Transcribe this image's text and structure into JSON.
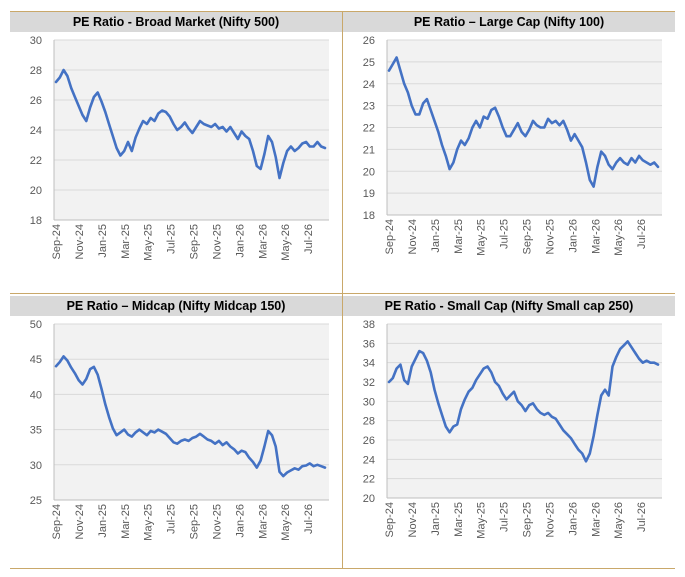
{
  "chart_data": [
    {
      "type": "line",
      "title": "PE Ratio - Broad Market (Nifty 500)",
      "xlabel": "",
      "ylabel": "",
      "ylim": [
        18,
        30
      ],
      "yticks": [
        18,
        20,
        22,
        24,
        26,
        28,
        30
      ],
      "xticks": [
        "Sep-24",
        "Nov-24",
        "Jan-25",
        "Mar-25",
        "May-25",
        "Jul-25",
        "Sep-25",
        "Nov-25",
        "Jan-26",
        "Mar-26",
        "May-26",
        "Jul-26"
      ],
      "grid": true,
      "color": "#4472c4",
      "series": [
        {
          "values": [
            27.2,
            27.5,
            28.0,
            27.6,
            26.8,
            26.2,
            25.6,
            25.0,
            24.6,
            25.5,
            26.2,
            26.5,
            25.9,
            25.2,
            24.4,
            23.6,
            22.8,
            22.3,
            22.6,
            23.2,
            22.6,
            23.5,
            24.1,
            24.6,
            24.4,
            24.8,
            24.6,
            25.1,
            25.3,
            25.2,
            24.9,
            24.4,
            24.0,
            24.2,
            24.5,
            24.1,
            23.8,
            24.2,
            24.6,
            24.4,
            24.3,
            24.2,
            24.4,
            24.1,
            24.2,
            23.9,
            24.2,
            23.8,
            23.4,
            23.9,
            23.6,
            23.4,
            22.6,
            21.6,
            21.4,
            22.4,
            23.6,
            23.2,
            22.2,
            20.8,
            21.8,
            22.6,
            22.9,
            22.6,
            22.8,
            23.1,
            23.2,
            22.9,
            22.9,
            23.2,
            22.9,
            22.8
          ]
        }
      ]
    },
    {
      "type": "line",
      "title": "PE Ratio – Large Cap (Nifty 100)",
      "xlabel": "",
      "ylabel": "",
      "ylim": [
        18,
        26
      ],
      "yticks": [
        18,
        19,
        20,
        21,
        22,
        23,
        24,
        25,
        26
      ],
      "xticks": [
        "Sep-24",
        "Nov-24",
        "Jan-25",
        "Mar-25",
        "May-25",
        "Jul-25",
        "Sep-25",
        "Nov-25",
        "Jan-26",
        "Mar-26",
        "May-26",
        "Jul-26"
      ],
      "grid": true,
      "color": "#4472c4",
      "series": [
        {
          "values": [
            24.6,
            24.9,
            25.2,
            24.6,
            24.0,
            23.6,
            23.0,
            22.6,
            22.6,
            23.1,
            23.3,
            22.8,
            22.3,
            21.8,
            21.2,
            20.7,
            20.1,
            20.4,
            21.0,
            21.4,
            21.2,
            21.5,
            22.0,
            22.3,
            22.0,
            22.5,
            22.4,
            22.8,
            22.9,
            22.5,
            22.0,
            21.6,
            21.6,
            21.9,
            22.2,
            21.8,
            21.6,
            21.9,
            22.3,
            22.1,
            22.0,
            22.0,
            22.4,
            22.2,
            22.3,
            22.1,
            22.3,
            21.9,
            21.4,
            21.7,
            21.4,
            21.1,
            20.4,
            19.6,
            19.3,
            20.2,
            20.9,
            20.7,
            20.3,
            20.1,
            20.4,
            20.6,
            20.4,
            20.3,
            20.6,
            20.4,
            20.7,
            20.5,
            20.4,
            20.3,
            20.4,
            20.2
          ]
        }
      ]
    },
    {
      "type": "line",
      "title": "PE Ratio – Midcap (Nifty Midcap 150)",
      "xlabel": "",
      "ylabel": "",
      "ylim": [
        25,
        50
      ],
      "yticks": [
        25,
        30,
        35,
        40,
        45,
        50
      ],
      "xticks": [
        "Sep-24",
        "Nov-24",
        "Jan-25",
        "Mar-25",
        "May-25",
        "Jul-25",
        "Sep-25",
        "Nov-25",
        "Jan-26",
        "Mar-26",
        "May-26",
        "Jul-26"
      ],
      "grid": true,
      "color": "#4472c4",
      "series": [
        {
          "values": [
            44.0,
            44.6,
            45.4,
            44.8,
            43.8,
            43.0,
            42.0,
            41.4,
            42.2,
            43.6,
            43.9,
            42.8,
            40.8,
            38.6,
            36.8,
            35.2,
            34.2,
            34.6,
            35.0,
            34.3,
            34.0,
            34.6,
            35.0,
            34.6,
            34.2,
            34.8,
            34.6,
            35.0,
            34.7,
            34.4,
            33.8,
            33.2,
            33.0,
            33.4,
            33.6,
            33.4,
            33.8,
            34.0,
            34.4,
            34.0,
            33.6,
            33.4,
            33.0,
            33.4,
            32.8,
            33.2,
            32.6,
            32.2,
            31.6,
            32.0,
            31.8,
            31.0,
            30.4,
            29.6,
            30.6,
            32.6,
            34.8,
            34.2,
            32.6,
            29.0,
            28.4,
            28.9,
            29.2,
            29.5,
            29.3,
            29.8,
            29.9,
            30.2,
            29.8,
            30.0,
            29.8,
            29.6
          ]
        }
      ]
    },
    {
      "type": "line",
      "title": "PE Ratio - Small Cap (Nifty Small cap 250)",
      "xlabel": "",
      "ylabel": "",
      "ylim": [
        20,
        38
      ],
      "yticks": [
        20,
        22,
        24,
        26,
        28,
        30,
        32,
        34,
        36,
        38
      ],
      "xticks": [
        "Sep-24",
        "Nov-24",
        "Jan-25",
        "Mar-25",
        "May-25",
        "Jul-25",
        "Sep-25",
        "Nov-25",
        "Jan-26",
        "Mar-26",
        "May-26",
        "Jul-26"
      ],
      "grid": true,
      "color": "#4472c4",
      "series": [
        {
          "values": [
            32.0,
            32.4,
            33.4,
            33.8,
            32.2,
            31.8,
            33.6,
            34.4,
            35.2,
            35.0,
            34.2,
            33.0,
            31.2,
            29.8,
            28.6,
            27.4,
            26.8,
            27.4,
            27.6,
            29.2,
            30.2,
            31.0,
            31.4,
            32.2,
            32.8,
            33.4,
            33.6,
            33.0,
            32.0,
            31.6,
            30.8,
            30.2,
            30.6,
            31.0,
            30.0,
            29.6,
            29.0,
            29.6,
            29.8,
            29.2,
            28.8,
            28.6,
            28.8,
            28.4,
            28.2,
            27.6,
            27.0,
            26.6,
            26.2,
            25.6,
            25.0,
            24.6,
            23.8,
            24.6,
            26.4,
            28.6,
            30.6,
            31.2,
            30.6,
            33.6,
            34.6,
            35.4,
            35.8,
            36.2,
            35.6,
            35.0,
            34.4,
            34.0,
            34.2,
            34.0,
            34.0,
            33.8
          ]
        }
      ]
    }
  ]
}
